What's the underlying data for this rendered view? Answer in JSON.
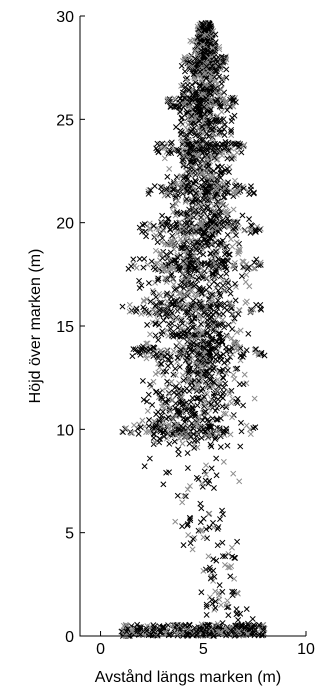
{
  "chart_data": {
    "type": "scatter",
    "marker": "x",
    "xlabel": "Avstånd längs marken (m)",
    "ylabel": "Höjd över marken (m)",
    "xlim": [
      -1,
      10
    ],
    "ylim": [
      0,
      30
    ],
    "xticks": [
      0,
      5,
      10
    ],
    "yticks": [
      0,
      5,
      10,
      15,
      20,
      25,
      30
    ],
    "grid": false,
    "legend": "none",
    "colors": {
      "dark": "#000000",
      "light": "#8c8c8c"
    },
    "crown_profile": [
      {
        "y": 0.0,
        "x_min": 1.0,
        "x_max": 8.0
      },
      {
        "y": 1.0,
        "x_min": 4.9,
        "x_max": 8.0
      },
      {
        "y": 3.0,
        "x_min": 4.8,
        "x_max": 6.6
      },
      {
        "y": 5.0,
        "x_min": 3.3,
        "x_max": 7.2
      },
      {
        "y": 7.0,
        "x_min": 2.3,
        "x_max": 7.2
      },
      {
        "y": 9.0,
        "x_min": 1.8,
        "x_max": 7.8
      },
      {
        "y": 10.0,
        "x_min": 1.0,
        "x_max": 7.6
      },
      {
        "y": 12.0,
        "x_min": 1.7,
        "x_max": 7.9
      },
      {
        "y": 14.0,
        "x_min": 1.4,
        "x_max": 8.0
      },
      {
        "y": 16.0,
        "x_min": 1.0,
        "x_max": 8.0
      },
      {
        "y": 18.0,
        "x_min": 1.3,
        "x_max": 7.8
      },
      {
        "y": 20.0,
        "x_min": 1.9,
        "x_max": 7.9
      },
      {
        "y": 22.0,
        "x_min": 2.3,
        "x_max": 7.4
      },
      {
        "y": 24.0,
        "x_min": 2.8,
        "x_max": 7.0
      },
      {
        "y": 26.0,
        "x_min": 3.3,
        "x_max": 6.6
      },
      {
        "y": 28.0,
        "x_min": 4.0,
        "x_max": 6.2
      },
      {
        "y": 29.5,
        "x_min": 4.6,
        "x_max": 5.6
      }
    ],
    "dense_bands_y": [
      0.2,
      10.0,
      13.7,
      15.8,
      18.0,
      19.8,
      21.6,
      23.6,
      25.8,
      27.8
    ]
  }
}
